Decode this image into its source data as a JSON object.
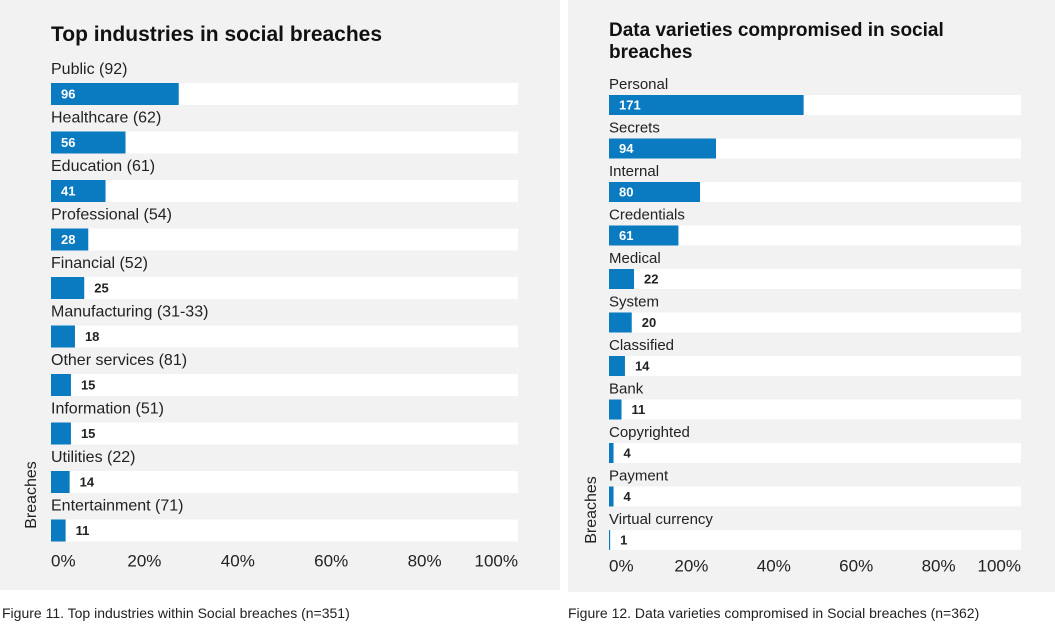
{
  "chart_data": [
    {
      "type": "bar",
      "title": "Top industries in social breaches",
      "y_axis_label": "Breaches",
      "caption": "Figure 11.  Top industries within Social breaches (n=351)",
      "categories": [
        "Public (92)",
        "Healthcare (62)",
        "Education (61)",
        "Professional (54)",
        "Financial (52)",
        "Manufacturing (31-33)",
        "Other services (81)",
        "Information (51)",
        "Utilities (22)",
        "Entertainment (71)"
      ],
      "values": [
        27.35,
        15.95,
        11.68,
        7.98,
        7.12,
        5.13,
        4.27,
        4.27,
        3.99,
        3.13
      ],
      "value_labels": [
        "96",
        "56",
        "41",
        "28",
        "25",
        "18",
        "15",
        "15",
        "14",
        "11"
      ],
      "color": "#0a7bc1",
      "xlim": [
        0,
        100
      ],
      "xticks": [
        {
          "value": 0,
          "label": "0%"
        },
        {
          "value": 20,
          "label": "20%"
        },
        {
          "value": 40,
          "label": "40%"
        },
        {
          "value": 60,
          "label": "60%"
        },
        {
          "value": 80,
          "label": "80%"
        },
        {
          "value": 100,
          "label": "100%"
        }
      ]
    },
    {
      "type": "bar",
      "title": "Data varieties compromised in social breaches",
      "y_axis_label": "Breaches",
      "caption": "Figure 12.  Data varieties compromised in Social breaches (n=362)",
      "categories": [
        "Personal",
        "Secrets",
        "Internal",
        "Credentials",
        "Medical",
        "System",
        "Classified",
        "Bank",
        "Copyrighted",
        "Payment",
        "Virtual currency"
      ],
      "values": [
        47.24,
        25.97,
        22.1,
        16.85,
        6.08,
        5.52,
        3.87,
        3.04,
        1.1,
        1.1,
        0.28
      ],
      "value_labels": [
        "171",
        "94",
        "80",
        "61",
        "22",
        "20",
        "14",
        "11",
        "4",
        "4",
        "1"
      ],
      "color": "#0a7bc1",
      "xlim": [
        0,
        100
      ],
      "xticks": [
        {
          "value": 0,
          "label": "0%"
        },
        {
          "value": 20,
          "label": "20%"
        },
        {
          "value": 40,
          "label": "40%"
        },
        {
          "value": 60,
          "label": "60%"
        },
        {
          "value": 80,
          "label": "80%"
        },
        {
          "value": 100,
          "label": "100%"
        }
      ]
    }
  ]
}
